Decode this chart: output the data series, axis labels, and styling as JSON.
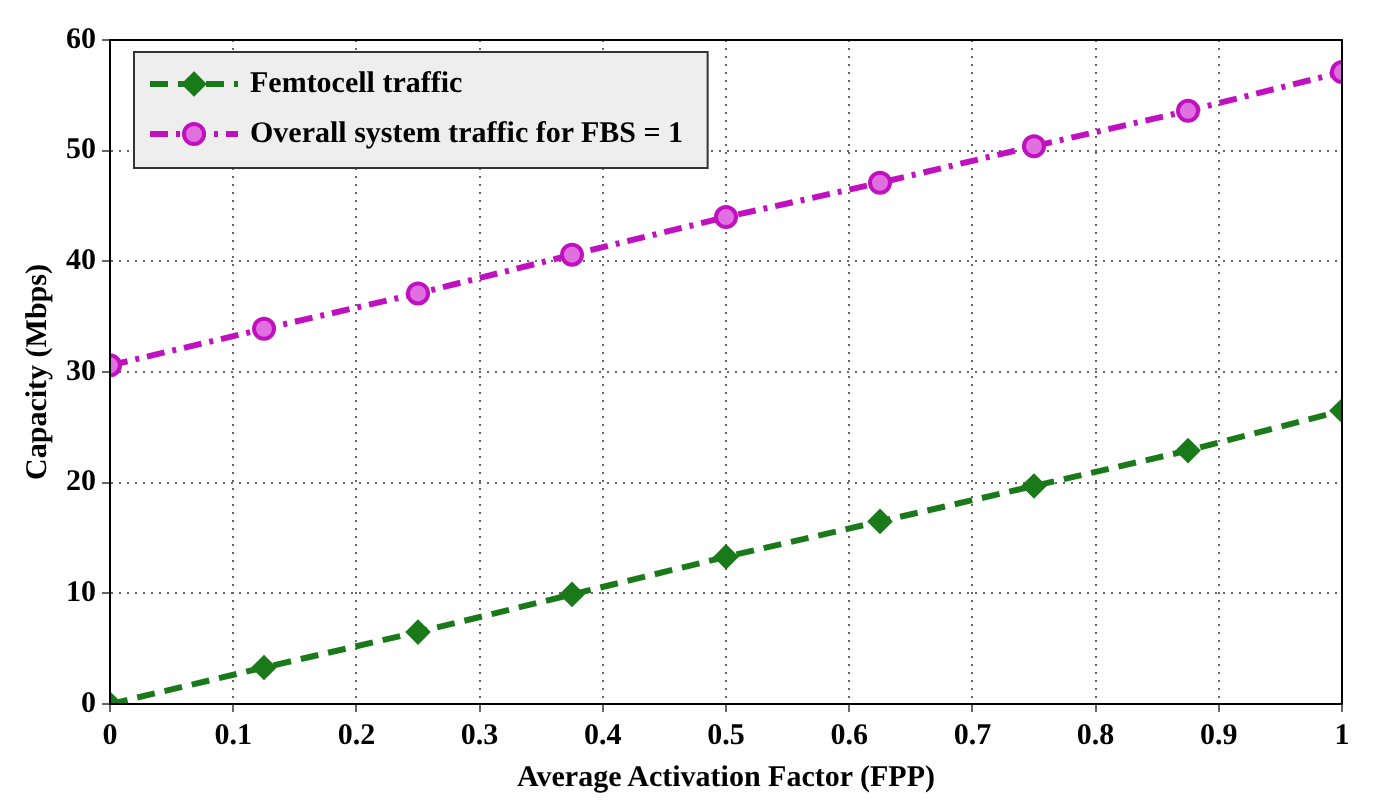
{
  "chart_data": {
    "type": "line",
    "xlabel": "Average Activation Factor (FPP)",
    "ylabel": "Capacity (Mbps)",
    "x": [
      0,
      0.125,
      0.25,
      0.375,
      0.5,
      0.625,
      0.75,
      0.875,
      1
    ],
    "series": [
      {
        "name": "Femtocell traffic",
        "color": "#1a7a1a",
        "values": [
          0,
          3.3,
          6.5,
          9.9,
          13.3,
          16.5,
          19.7,
          22.9,
          26.5
        ],
        "marker": "diamond",
        "line_style": "dashed"
      },
      {
        "name": "Overall system traffic for FBS = 1",
        "color": "#c010c0",
        "values": [
          30.6,
          33.9,
          37.1,
          40.6,
          44.0,
          47.1,
          50.4,
          53.6,
          57.1
        ],
        "marker": "circle",
        "line_style": "dashdot"
      }
    ],
    "xlim": [
      0,
      1
    ],
    "xticks": [
      0,
      0.1,
      0.2,
      0.3,
      0.4,
      0.5,
      0.6,
      0.7,
      0.8,
      0.9,
      1
    ],
    "ylim": [
      0,
      60
    ],
    "yticks": [
      0,
      10,
      20,
      30,
      40,
      50,
      60
    ],
    "grid": true,
    "legend": "top left"
  }
}
